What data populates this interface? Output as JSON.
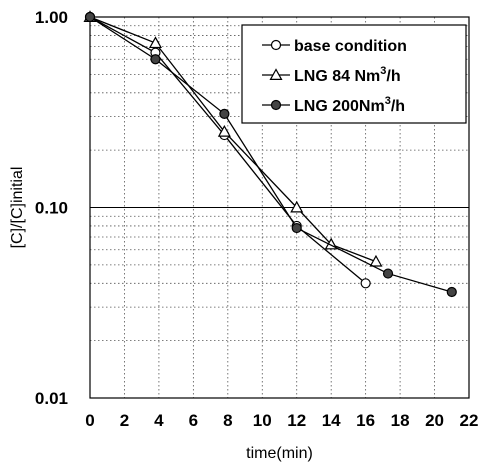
{
  "chart_data": {
    "type": "line",
    "xlabel": "time(min)",
    "ylabel": "[C]/[C]initial",
    "xlim": [
      0,
      22
    ],
    "ylim": [
      0.01,
      1.0
    ],
    "yscale": "log",
    "x_ticks": [
      "0",
      "2",
      "4",
      "6",
      "8",
      "10",
      "12",
      "14",
      "16",
      "18",
      "20",
      "22"
    ],
    "y_ticks": [
      {
        "value": 1.0,
        "label": "1.00"
      },
      {
        "value": 0.1,
        "label": "0.10"
      },
      {
        "value": 0.01,
        "label": "0.01"
      }
    ],
    "grid": true,
    "legend_position": "top-right",
    "series": [
      {
        "name": "base condition",
        "marker": "open-circle",
        "x": [
          0,
          3.8,
          7.8,
          12,
          16
        ],
        "y": [
          1.0,
          0.65,
          0.24,
          0.08,
          0.04
        ]
      },
      {
        "name": "LNG 84 Nm3/h",
        "legend_parts": [
          "LNG  84 Nm",
          "3",
          "/h"
        ],
        "marker": "open-triangle",
        "x": [
          0,
          3.8,
          7.8,
          12,
          14,
          16.6
        ],
        "y": [
          1.0,
          0.73,
          0.25,
          0.1,
          0.064,
          0.052
        ]
      },
      {
        "name": "LNG 200Nm3/h",
        "legend_parts": [
          "LNG 200Nm",
          "3",
          "/h"
        ],
        "marker": "filled-circle",
        "x": [
          0,
          3.8,
          7.8,
          12,
          17.3,
          21
        ],
        "y": [
          1.0,
          0.6,
          0.31,
          0.078,
          0.045,
          0.036
        ]
      }
    ]
  }
}
